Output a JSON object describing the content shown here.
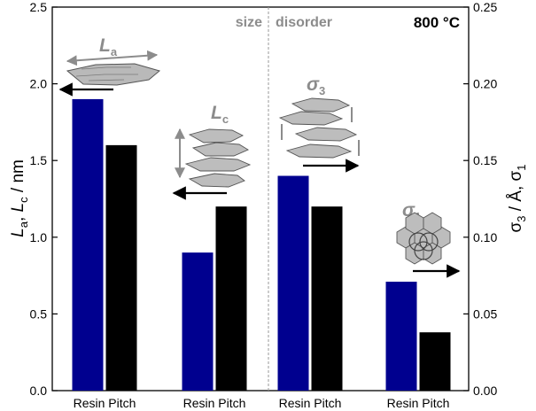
{
  "chart_data": {
    "type": "bar",
    "annotation": "800 °C",
    "section_labels": [
      "size",
      "disorder"
    ],
    "ylabel_left": {
      "main": "L",
      "sub_a": "a",
      "sep": ", ",
      "main2": "L",
      "sub_c": "c",
      "unit": " / nm"
    },
    "ylabel_right": {
      "sym": "σ",
      "sub3": "3",
      "unit": " / Å, ",
      "sym2": "σ",
      "sub1": "1"
    },
    "ylim_left": [
      0,
      2.5
    ],
    "ylim_right": [
      0,
      0.25
    ],
    "yticks_left": [
      "0.0",
      "0.5",
      "1.0",
      "1.5",
      "2.0",
      "2.5"
    ],
    "yticks_right": [
      "0.00",
      "0.05",
      "0.10",
      "0.15",
      "0.20",
      "0.25"
    ],
    "x_tick_label": "Resin Pitch",
    "groups": [
      {
        "parameter": "La",
        "symbol": "L",
        "sub": "a",
        "axis": "left",
        "values": {
          "Resin": 1.9,
          "Pitch": 1.6
        }
      },
      {
        "parameter": "Lc",
        "symbol": "L",
        "sub": "c",
        "axis": "left",
        "values": {
          "Resin": 0.9,
          "Pitch": 1.2
        }
      },
      {
        "parameter": "σ3",
        "symbol": "σ",
        "sub": "3",
        "axis": "right",
        "values": {
          "Resin": 0.14,
          "Pitch": 0.12
        }
      },
      {
        "parameter": "σ1",
        "symbol": "σ",
        "sub": "1",
        "axis": "right",
        "values": {
          "Resin": 0.071,
          "Pitch": 0.038
        }
      }
    ],
    "colors": {
      "Resin": "#00008f",
      "Pitch": "#000000",
      "section_text": "#8c8c8c",
      "divider": "#9a9a9a"
    }
  }
}
